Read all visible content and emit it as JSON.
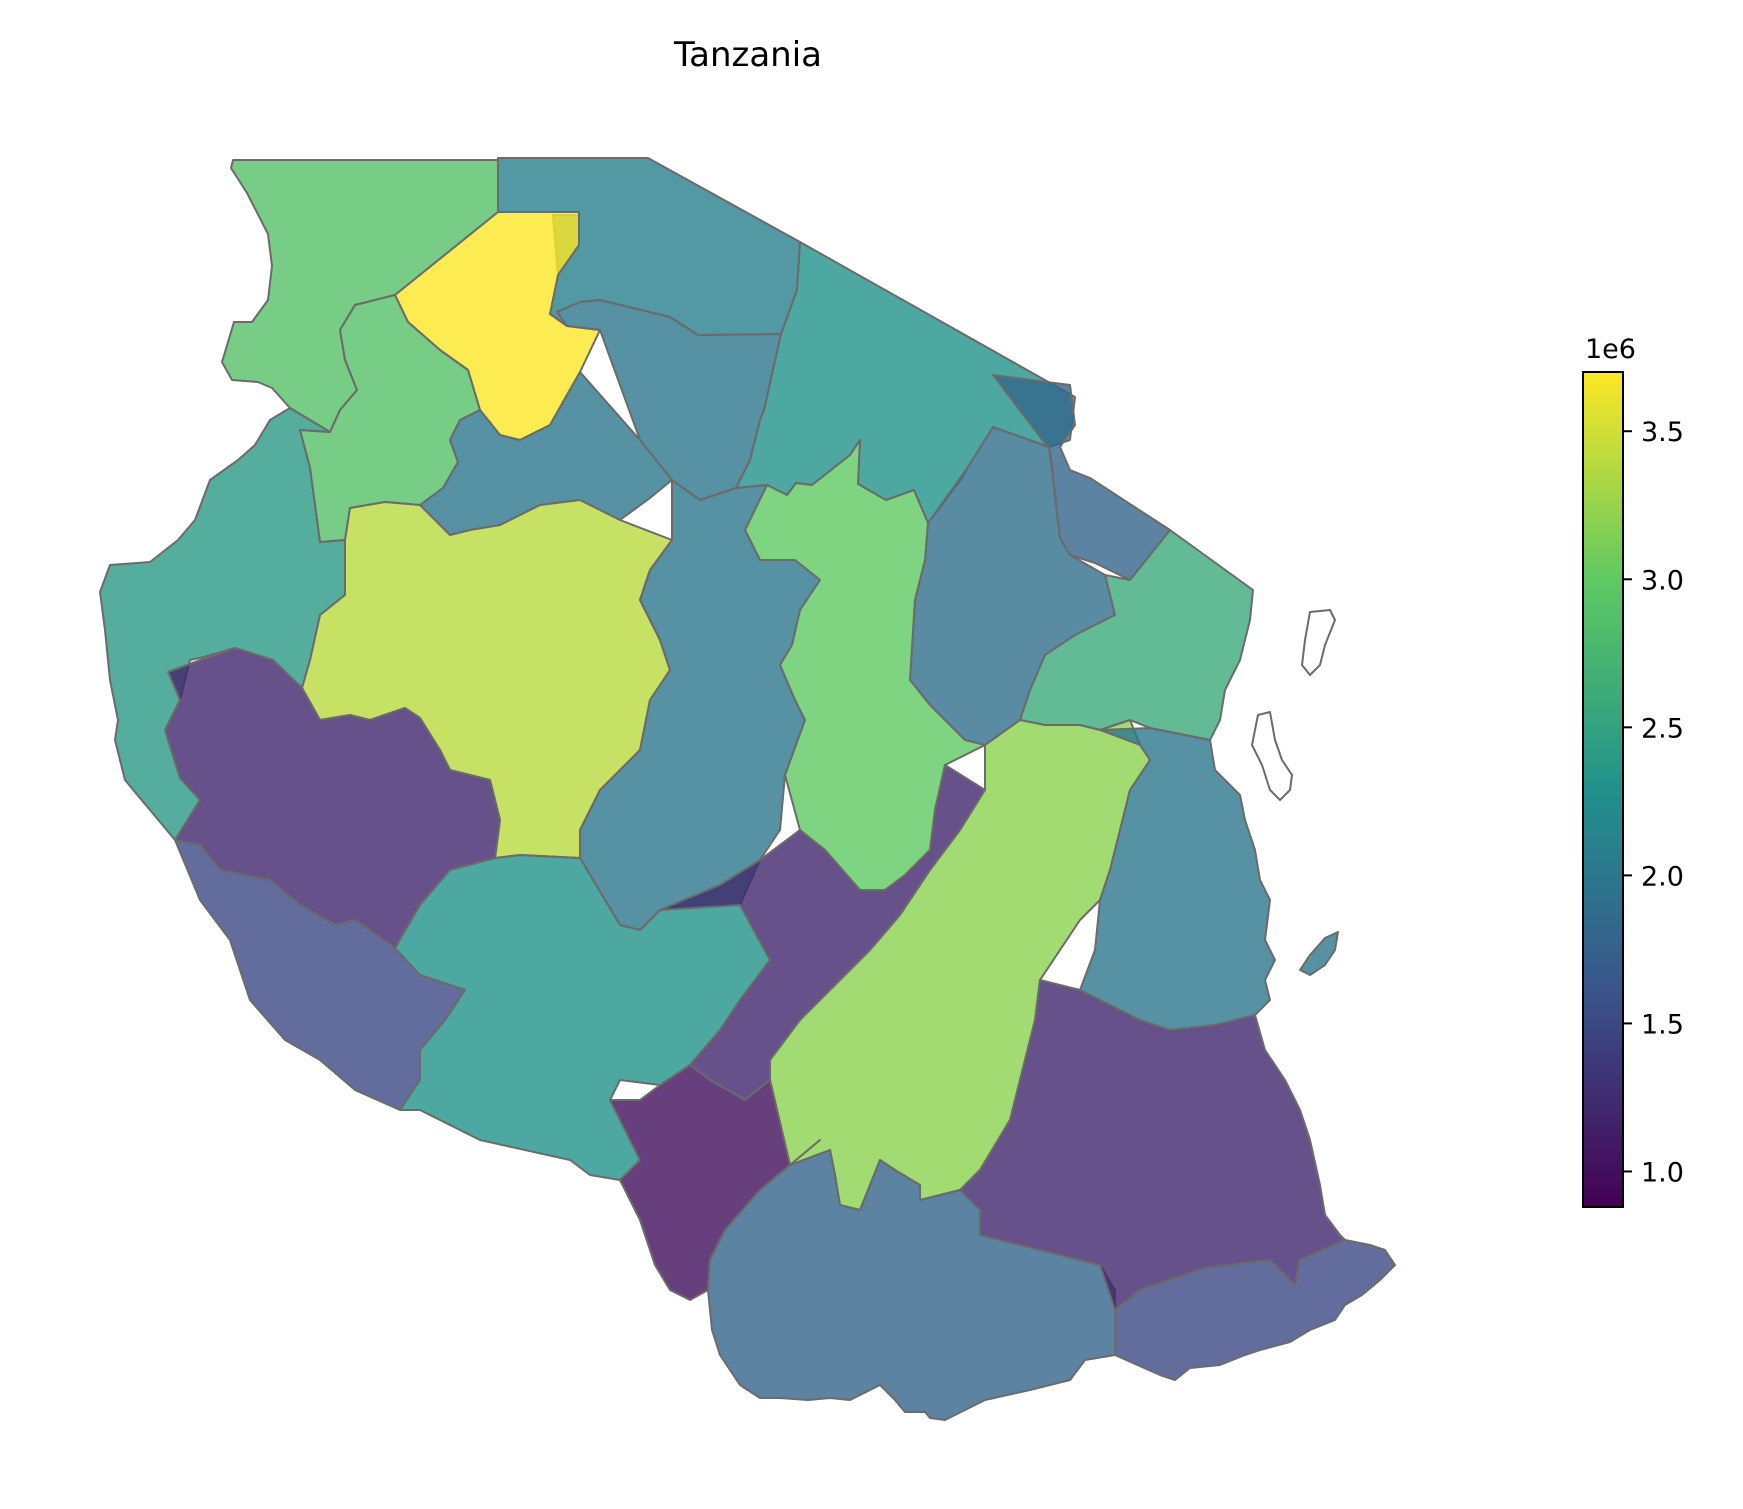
{
  "title": "Tanzania",
  "colorbar": {
    "exponent_label": "1e6",
    "ticks": [
      "1.0",
      "1.5",
      "2.0",
      "2.5",
      "3.0",
      "3.5"
    ],
    "tick_values": [
      1.0,
      1.5,
      2.0,
      2.5,
      3.0,
      3.5
    ],
    "min": 0.88,
    "max": 3.7,
    "colormap": "viridis",
    "colors": [
      "#440154",
      "#3b528b",
      "#21918c",
      "#5ec962",
      "#fde725"
    ]
  },
  "chart_data": {
    "type": "choropleth",
    "title": "Tanzania",
    "units_multiplier": "1e6",
    "colorbar_range": [
      0.88,
      3.7
    ],
    "regions": [
      {
        "id": "mara",
        "value": 2.1
      },
      {
        "id": "arusha",
        "value": 2.3
      },
      {
        "id": "kagera",
        "value": 2.9
      },
      {
        "id": "mwanza",
        "value": 3.7
      },
      {
        "id": "geita",
        "value": 2.9
      },
      {
        "id": "shinyanga",
        "value": 2.0
      },
      {
        "id": "simiyu",
        "value": 2.0
      },
      {
        "id": "kilimanjaro",
        "value": 1.8
      },
      {
        "id": "tanga",
        "value": 2.6
      },
      {
        "id": "manyara",
        "value": 1.9
      },
      {
        "id": "kigoma",
        "value": 2.4
      },
      {
        "id": "tabora",
        "value": 3.4
      },
      {
        "id": "singida",
        "value": 2.0
      },
      {
        "id": "dodoma",
        "value": 3.0
      },
      {
        "id": "katavi",
        "value": 1.2
      },
      {
        "id": "rukwa",
        "value": 1.5
      },
      {
        "id": "mbeya",
        "value": 2.3
      },
      {
        "id": "iringa",
        "value": 1.2
      },
      {
        "id": "morogoro",
        "value": 3.2
      },
      {
        "id": "pwani",
        "value": 2.0
      },
      {
        "id": "njombe",
        "value": 1.0
      },
      {
        "id": "ruvuma",
        "value": 1.8
      },
      {
        "id": "lindi",
        "value": 1.2
      },
      {
        "id": "mtwara",
        "value": 1.5
      },
      {
        "id": "pemba",
        "value": null
      },
      {
        "id": "unguja",
        "value": null
      },
      {
        "id": "mafia",
        "value": 2.0
      }
    ]
  }
}
